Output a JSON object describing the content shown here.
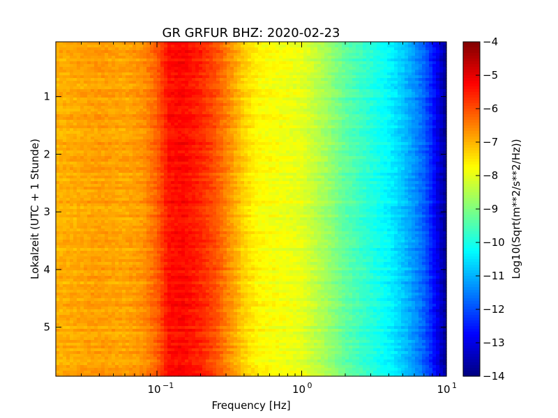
{
  "chart_data": {
    "type": "heatmap",
    "title": "GR GRFUR BHZ: 2020-02-23",
    "xlabel": "Frequency [Hz]",
    "ylabel": "Lokalzeit (UTC + 1 Stunde)",
    "x_scale": "log",
    "xlim": [
      0.02,
      10
    ],
    "ylim": [
      0.05,
      5.85
    ],
    "y_inverted": true,
    "xticks": [
      {
        "value": 0.1,
        "base": "10",
        "exp": "−1"
      },
      {
        "value": 1,
        "base": "10",
        "exp": "0"
      },
      {
        "value": 10,
        "base": "10",
        "exp": "1"
      }
    ],
    "yticks": [
      {
        "value": 1,
        "label": "1"
      },
      {
        "value": 2,
        "label": "2"
      },
      {
        "value": 3,
        "label": "3"
      },
      {
        "value": 4,
        "label": "4"
      },
      {
        "value": 5,
        "label": "5"
      }
    ],
    "colorbar": {
      "label": "Log10(Sqrt(m**2/s**2/Hz))",
      "range": [
        -14,
        -4
      ],
      "colormap": "jet",
      "ticks": [
        {
          "value": -4,
          "label": "−4"
        },
        {
          "value": -5,
          "label": "−5"
        },
        {
          "value": -6,
          "label": "−6"
        },
        {
          "value": -7,
          "label": "−7"
        },
        {
          "value": -8,
          "label": "−8"
        },
        {
          "value": -9,
          "label": "−9"
        },
        {
          "value": -10,
          "label": "−10"
        },
        {
          "value": -11,
          "label": "−11"
        },
        {
          "value": -12,
          "label": "−12"
        },
        {
          "value": -13,
          "label": "−13"
        },
        {
          "value": -14,
          "label": "−14"
        }
      ]
    },
    "spectrum_profile": {
      "frequency_hz": [
        0.02,
        0.04,
        0.06,
        0.08,
        0.1,
        0.12,
        0.15,
        0.2,
        0.25,
        0.3,
        0.4,
        0.5,
        0.6,
        0.8,
        1.0,
        1.5,
        2.0,
        3.0,
        4.0,
        5.0,
        6.0,
        7.0,
        8.0,
        9.0,
        10.0
      ],
      "log_amplitude": [
        -7.0,
        -6.8,
        -6.9,
        -6.7,
        -6.2,
        -5.4,
        -5.3,
        -5.6,
        -6.0,
        -6.5,
        -7.3,
        -7.7,
        -7.8,
        -7.9,
        -8.0,
        -8.7,
        -9.3,
        -9.9,
        -10.3,
        -10.8,
        -11.3,
        -11.8,
        -12.5,
        -13.2,
        -13.8
      ]
    }
  }
}
